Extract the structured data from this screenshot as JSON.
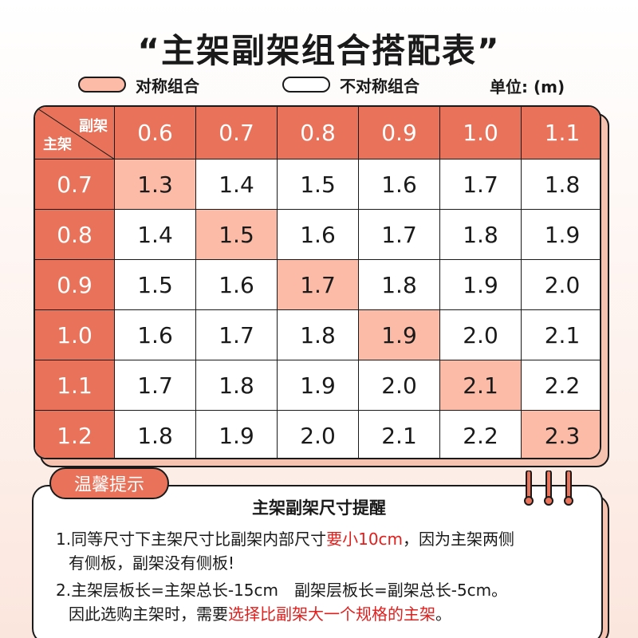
{
  "title": "“主架副架组合搭配表”",
  "legend": {
    "symmetric_label": "对称组合",
    "symmetric_color": "#fbbba6",
    "asymmetric_label": "不对称组合",
    "asymmetric_color": "#ffffff"
  },
  "unit": "单位: (m)",
  "table": {
    "corner_top": "副架",
    "corner_bottom": "主架",
    "col_headers": [
      "0.6",
      "0.7",
      "0.8",
      "0.9",
      "1.0",
      "1.1"
    ],
    "rows": [
      {
        "header": "0.7",
        "cells": [
          "1.3",
          "1.4",
          "1.5",
          "1.6",
          "1.7",
          "1.8"
        ],
        "symmetric_index": 0
      },
      {
        "header": "0.8",
        "cells": [
          "1.4",
          "1.5",
          "1.6",
          "1.7",
          "1.8",
          "1.9"
        ],
        "symmetric_index": 1
      },
      {
        "header": "0.9",
        "cells": [
          "1.5",
          "1.6",
          "1.7",
          "1.8",
          "1.9",
          "2.0"
        ],
        "symmetric_index": 2
      },
      {
        "header": "1.0",
        "cells": [
          "1.6",
          "1.7",
          "1.8",
          "1.9",
          "2.0",
          "2.1"
        ],
        "symmetric_index": 3
      },
      {
        "header": "1.1",
        "cells": [
          "1.7",
          "1.8",
          "1.9",
          "2.0",
          "2.1",
          "2.2"
        ],
        "symmetric_index": 4
      },
      {
        "header": "1.2",
        "cells": [
          "1.8",
          "1.9",
          "2.0",
          "2.1",
          "2.2",
          "2.3"
        ],
        "symmetric_index": 5
      }
    ],
    "header_color": "#e8735a"
  },
  "tips": {
    "tag": "温馨提示",
    "heading": "主架副架尺寸提醒",
    "line1a_pre": "1.同等尺寸下主架尺寸比副架内部尺寸",
    "line1a_red": "要小10cm",
    "line1a_post": "，因为主架两侧",
    "line1b": "有侧板，副架没有侧板!",
    "line2a": "2.主架层板长=主架总长-15cm　副架层板长=副架总长-5cm。",
    "line2b_pre": "因此选购主架时，需要",
    "line2b_red": "选择比副架大一个规格的主架",
    "line2b_post": "。",
    "highlight_color": "#e0201e"
  }
}
